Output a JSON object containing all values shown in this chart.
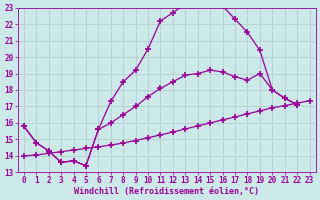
{
  "xlabel": "Windchill (Refroidissement éolien,°C)",
  "bg_color": "#cce8e8",
  "grid_color": "#b0d0d0",
  "line_color": "#990099",
  "xlim": [
    -0.5,
    23.5
  ],
  "ylim": [
    13,
    23
  ],
  "xticks": [
    0,
    1,
    2,
    3,
    4,
    5,
    6,
    7,
    8,
    9,
    10,
    11,
    12,
    13,
    14,
    15,
    16,
    17,
    18,
    19,
    20,
    21,
    22,
    23
  ],
  "yticks": [
    13,
    14,
    15,
    16,
    17,
    18,
    19,
    20,
    21,
    22,
    23
  ],
  "line1_x": [
    0,
    1,
    2,
    3,
    4,
    5,
    6,
    7,
    8,
    9,
    10,
    11,
    12,
    13,
    14,
    15,
    16,
    17,
    18,
    19,
    20,
    21,
    22
  ],
  "line1_y": [
    15.8,
    14.8,
    14.3,
    13.6,
    13.7,
    13.4,
    15.6,
    17.3,
    18.5,
    19.2,
    20.5,
    22.2,
    22.7,
    23.2,
    23.35,
    23.35,
    23.1,
    22.3,
    21.5,
    20.4,
    18.0,
    17.5,
    17.1
  ],
  "line2_x": [
    0,
    1,
    2,
    3,
    4,
    5,
    6,
    7,
    8,
    9,
    10,
    11,
    12,
    13,
    14,
    15,
    16,
    17,
    18,
    19,
    20,
    21,
    22
  ],
  "line2_y": [
    15.8,
    14.8,
    14.3,
    13.6,
    13.7,
    13.4,
    15.6,
    16.0,
    16.5,
    17.0,
    17.6,
    18.1,
    18.5,
    18.9,
    19.0,
    19.2,
    19.1,
    18.8,
    18.6,
    19.0,
    18.0,
    17.5,
    17.1
  ],
  "line3_x": [
    0,
    1,
    2,
    3,
    4,
    5,
    6,
    7,
    8,
    9,
    10,
    11,
    12,
    13,
    14,
    15,
    16,
    17,
    18,
    19,
    20,
    21,
    22,
    23
  ],
  "line3_y": [
    14.0,
    14.05,
    14.15,
    14.25,
    14.35,
    14.45,
    14.55,
    14.65,
    14.78,
    14.93,
    15.1,
    15.27,
    15.45,
    15.63,
    15.82,
    16.0,
    16.18,
    16.36,
    16.55,
    16.73,
    16.92,
    17.05,
    17.2,
    17.35
  ],
  "marker": "+",
  "markersize": 4,
  "linewidth": 0.9,
  "fontsize_label": 6,
  "fontsize_tick": 5.5
}
